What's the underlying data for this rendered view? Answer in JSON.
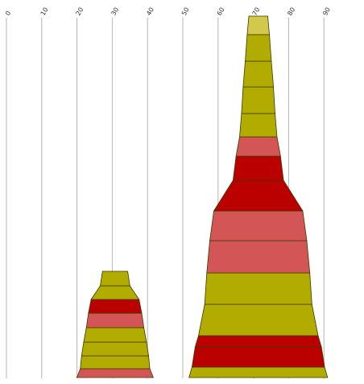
{
  "chart_data": {
    "type": "bar",
    "subtype": "stacked-funnel",
    "title": "",
    "xlabel": "",
    "ylabel": "",
    "xlim": [
      0,
      100
    ],
    "grid": true,
    "legend": "none",
    "x_ticks": [
      "0",
      "10",
      "20",
      "30",
      "40",
      "50",
      "60",
      "70",
      "80",
      "90"
    ],
    "palette": {
      "olive": "#b3ac00",
      "red": "#bb0000",
      "salmon": "#d45555",
      "yellow": "#d2c84b"
    },
    "funnels": [
      {
        "name": "",
        "center": 30.8,
        "segments": [
          {
            "width": 21.7,
            "color": "salmon"
          },
          {
            "width": 19.7,
            "color": "olive"
          },
          {
            "width": 19.0,
            "color": "olive"
          },
          {
            "width": 17.8,
            "color": "olive"
          },
          {
            "width": 16.3,
            "color": "salmon"
          },
          {
            "width": 15.1,
            "color": "red"
          },
          {
            "width": 13.6,
            "color": "olive"
          },
          {
            "width": 8.4,
            "color": "olive"
          }
        ]
      },
      {
        "name": "",
        "center": 71.4,
        "segments": [
          {
            "width": 39.3,
            "color": "olive"
          },
          {
            "width": 37.6,
            "color": "red"
          },
          {
            "width": 35.8,
            "color": "red"
          },
          {
            "width": 33.9,
            "color": "olive"
          },
          {
            "width": 30.4,
            "color": "olive"
          },
          {
            "width": 29.2,
            "color": "salmon"
          },
          {
            "width": 27.5,
            "color": "salmon"
          },
          {
            "width": 25.2,
            "color": "red"
          },
          {
            "width": 14.3,
            "color": "red"
          },
          {
            "width": 12.6,
            "color": "salmon"
          },
          {
            "width": 10.6,
            "color": "olive"
          },
          {
            "width": 9.5,
            "color": "olive"
          },
          {
            "width": 8.6,
            "color": "olive"
          },
          {
            "width": 7.4,
            "color": "olive"
          },
          {
            "width": 6.3,
            "color": "yellow"
          }
        ]
      }
    ]
  }
}
